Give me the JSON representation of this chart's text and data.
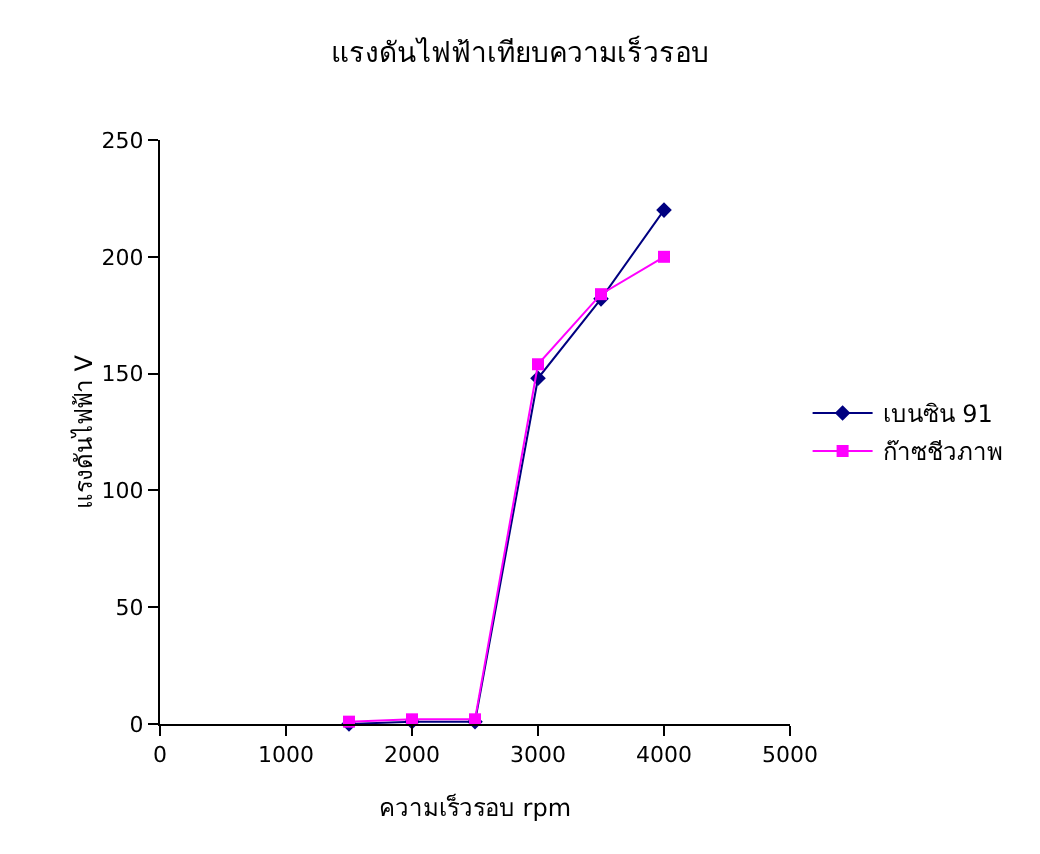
{
  "chart_data": {
    "type": "line",
    "title": "แรงดันไฟฟ้าเทียบความเร็วรอบ",
    "xlabel": "ความเร็วรอบ rpm",
    "ylabel": "แรงดันไฟฟ้า V",
    "x": [
      1500,
      2000,
      2500,
      3000,
      3500,
      4000
    ],
    "series": [
      {
        "name": "เบนซิน 91",
        "color": "#000080",
        "marker": "diamond",
        "values": [
          0,
          1,
          1,
          148,
          182,
          220
        ]
      },
      {
        "name": "ก๊าซชีวภาพ",
        "color": "#ff00ff",
        "marker": "square",
        "values": [
          1,
          2,
          2,
          154,
          184,
          200
        ]
      }
    ],
    "xlim": [
      0,
      5000
    ],
    "xticks": [
      0,
      1000,
      2000,
      3000,
      4000,
      5000
    ],
    "ylim": [
      0,
      250
    ],
    "yticks": [
      0,
      50,
      100,
      150,
      200,
      250
    ],
    "grid": false,
    "legend": "right",
    "line_style": "solid"
  }
}
